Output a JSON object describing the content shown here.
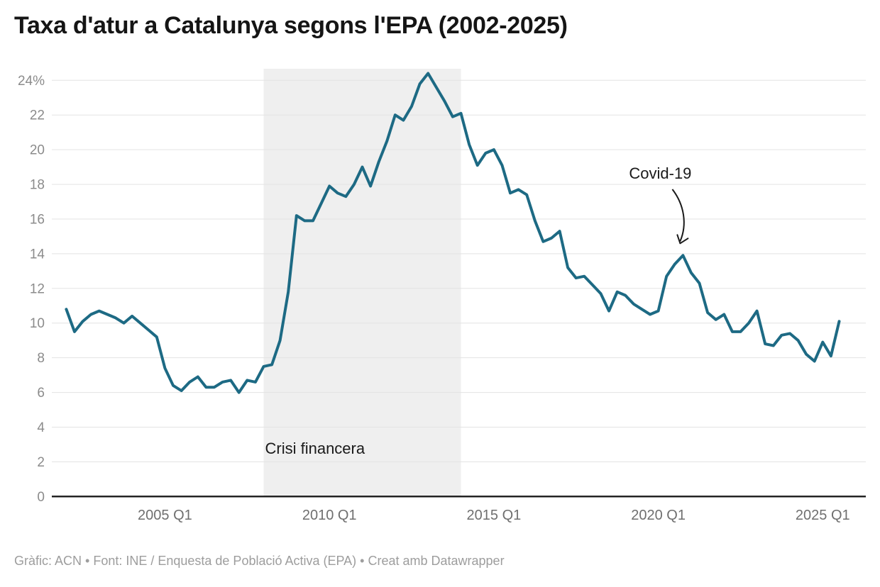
{
  "header": {
    "title": "Taxa d'atur a Catalunya segons l'EPA (2002-2025)"
  },
  "footer": {
    "text": "Gràfic: ACN • Font: INE / Enquesta de Població Activa (EPA) • Creat amb Datawrapper"
  },
  "colors": {
    "line": "#1d6a84",
    "band": "#efefef",
    "grid": "#e3e3e3",
    "axis": "#191919",
    "annotation": "#1a1a1a",
    "y_label": "#8b8b8b",
    "x_label": "#6f6f6f"
  },
  "chart_data": {
    "type": "line",
    "title": "Taxa d'atur a Catalunya segons l'EPA (2002-2025)",
    "unit": "%",
    "frequency": "quarterly",
    "start_quarter": "2002 Q1",
    "end_quarter": "2025 Q3",
    "ylim": [
      0,
      24
    ],
    "grid": "horizontal",
    "legend": "none",
    "series": [
      {
        "name": "Taxa d'atur (%)",
        "values": [
          10.8,
          9.5,
          10.1,
          10.5,
          10.7,
          10.5,
          10.3,
          10.0,
          10.4,
          10.0,
          9.6,
          9.2,
          7.4,
          6.4,
          6.1,
          6.6,
          6.9,
          6.3,
          6.3,
          6.6,
          6.7,
          6.0,
          6.7,
          6.6,
          7.5,
          7.6,
          9.0,
          11.8,
          16.2,
          15.9,
          15.9,
          16.9,
          17.9,
          17.5,
          17.3,
          18.0,
          19.0,
          17.9,
          19.3,
          20.5,
          22.0,
          21.7,
          22.5,
          23.8,
          24.4,
          23.6,
          22.8,
          21.9,
          22.1,
          20.3,
          19.1,
          19.8,
          20.0,
          19.1,
          17.5,
          17.7,
          17.4,
          15.9,
          14.7,
          14.9,
          15.3,
          13.2,
          12.6,
          12.7,
          12.2,
          11.7,
          10.7,
          11.8,
          11.6,
          11.1,
          10.8,
          10.5,
          10.7,
          12.7,
          13.4,
          13.9,
          12.9,
          12.3,
          10.6,
          10.2,
          10.5,
          9.5,
          9.5,
          10.0,
          10.7,
          8.8,
          8.7,
          9.3,
          9.4,
          9.0,
          8.2,
          7.8,
          8.9,
          8.1,
          10.1
        ]
      }
    ],
    "y_ticks": [
      {
        "v": 0,
        "label": "0"
      },
      {
        "v": 2,
        "label": "2"
      },
      {
        "v": 4,
        "label": "4"
      },
      {
        "v": 6,
        "label": "6"
      },
      {
        "v": 8,
        "label": "8"
      },
      {
        "v": 10,
        "label": "10"
      },
      {
        "v": 12,
        "label": "12"
      },
      {
        "v": 14,
        "label": "14"
      },
      {
        "v": 16,
        "label": "16"
      },
      {
        "v": 18,
        "label": "18"
      },
      {
        "v": 20,
        "label": "20"
      },
      {
        "v": 22,
        "label": "22"
      },
      {
        "v": 24,
        "label": "24%"
      }
    ],
    "x_ticks": [
      {
        "index": 12,
        "label": "2005 Q1"
      },
      {
        "index": 32,
        "label": "2010 Q1"
      },
      {
        "index": 52,
        "label": "2015 Q1"
      },
      {
        "index": 72,
        "label": "2020 Q1"
      },
      {
        "index": 92,
        "label": "2025 Q1"
      }
    ],
    "annotations": {
      "band": {
        "label": "Crisi financera",
        "start_index": 24,
        "end_index": 48
      },
      "covid": {
        "label": "Covid-19",
        "point_index": 75,
        "value": 13.9
      }
    }
  }
}
